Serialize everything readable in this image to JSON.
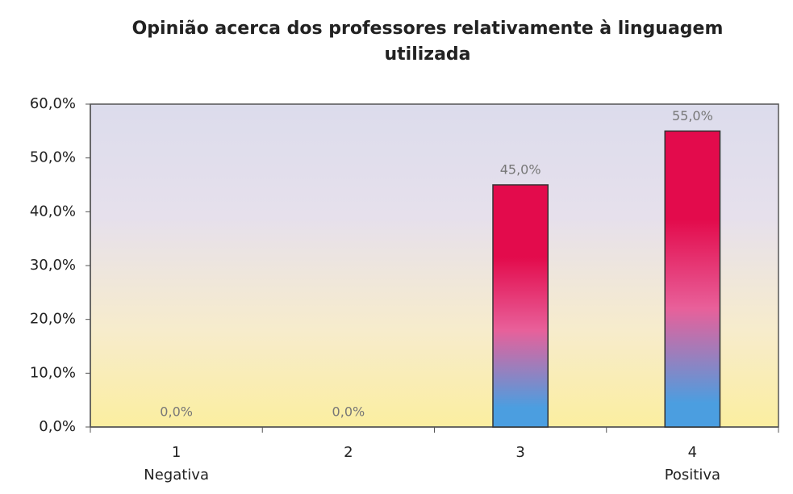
{
  "chart_data": {
    "type": "bar",
    "title": "Opinião acerca dos professores relativamente à linguagem utilizada",
    "categories": [
      "1",
      "2",
      "3",
      "4"
    ],
    "category_sublabels": [
      "Negativa",
      null,
      null,
      "Positiva"
    ],
    "values": [
      0,
      0,
      45,
      55
    ],
    "value_labels": [
      "0,0%",
      "0,0%",
      "45,0%",
      "55,0%"
    ],
    "colors": [
      "#e30b4c",
      "#e8609a",
      "#4b9ee0"
    ],
    "ylim": [
      0,
      60
    ],
    "yticks": [
      {
        "value": 0,
        "label": "0,0%"
      },
      {
        "value": 10,
        "label": "10,0%"
      },
      {
        "value": 20,
        "label": "20,0%"
      },
      {
        "value": 30,
        "label": "30,0%"
      },
      {
        "value": 40,
        "label": "40,0%"
      },
      {
        "value": 50,
        "label": "50,0%"
      },
      {
        "value": 60,
        "label": "60,0%"
      }
    ],
    "grid": false
  }
}
